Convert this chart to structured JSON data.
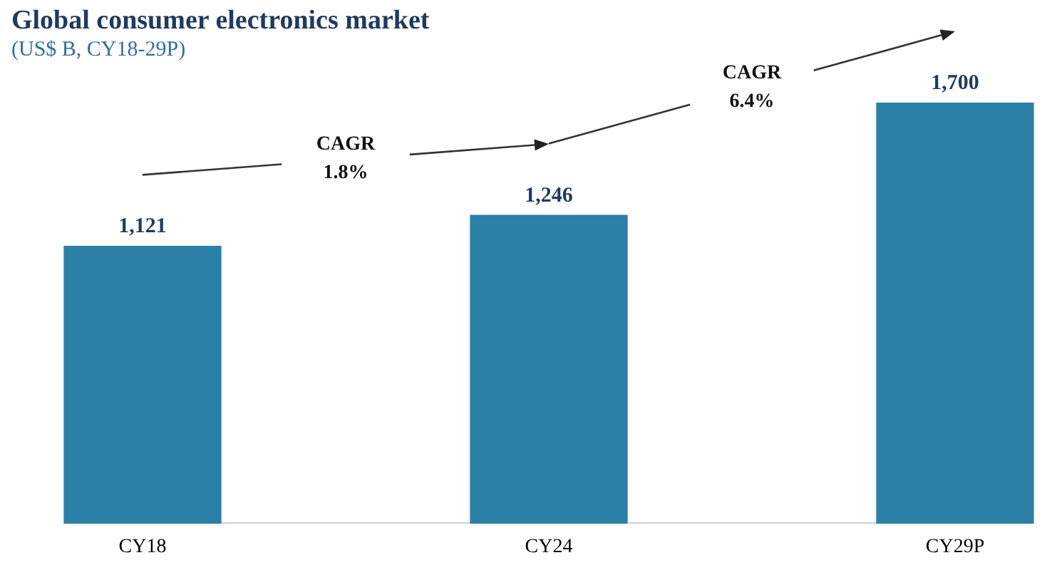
{
  "chart_data": {
    "type": "bar",
    "title": "Global consumer electronics market",
    "subtitle": "(US$ B, CY18-29P)",
    "categories": [
      "CY18",
      "CY24",
      "CY29P"
    ],
    "values": [
      1121,
      1246,
      1700
    ],
    "color": "#2b80a8",
    "value_labels": [
      "1,121",
      "1,246",
      "1,700"
    ],
    "tick_labels": "x",
    "grid": false,
    "legend": false,
    "annotations": [
      "CAGR 1.8%",
      "CAGR 6.4%"
    ]
  }
}
